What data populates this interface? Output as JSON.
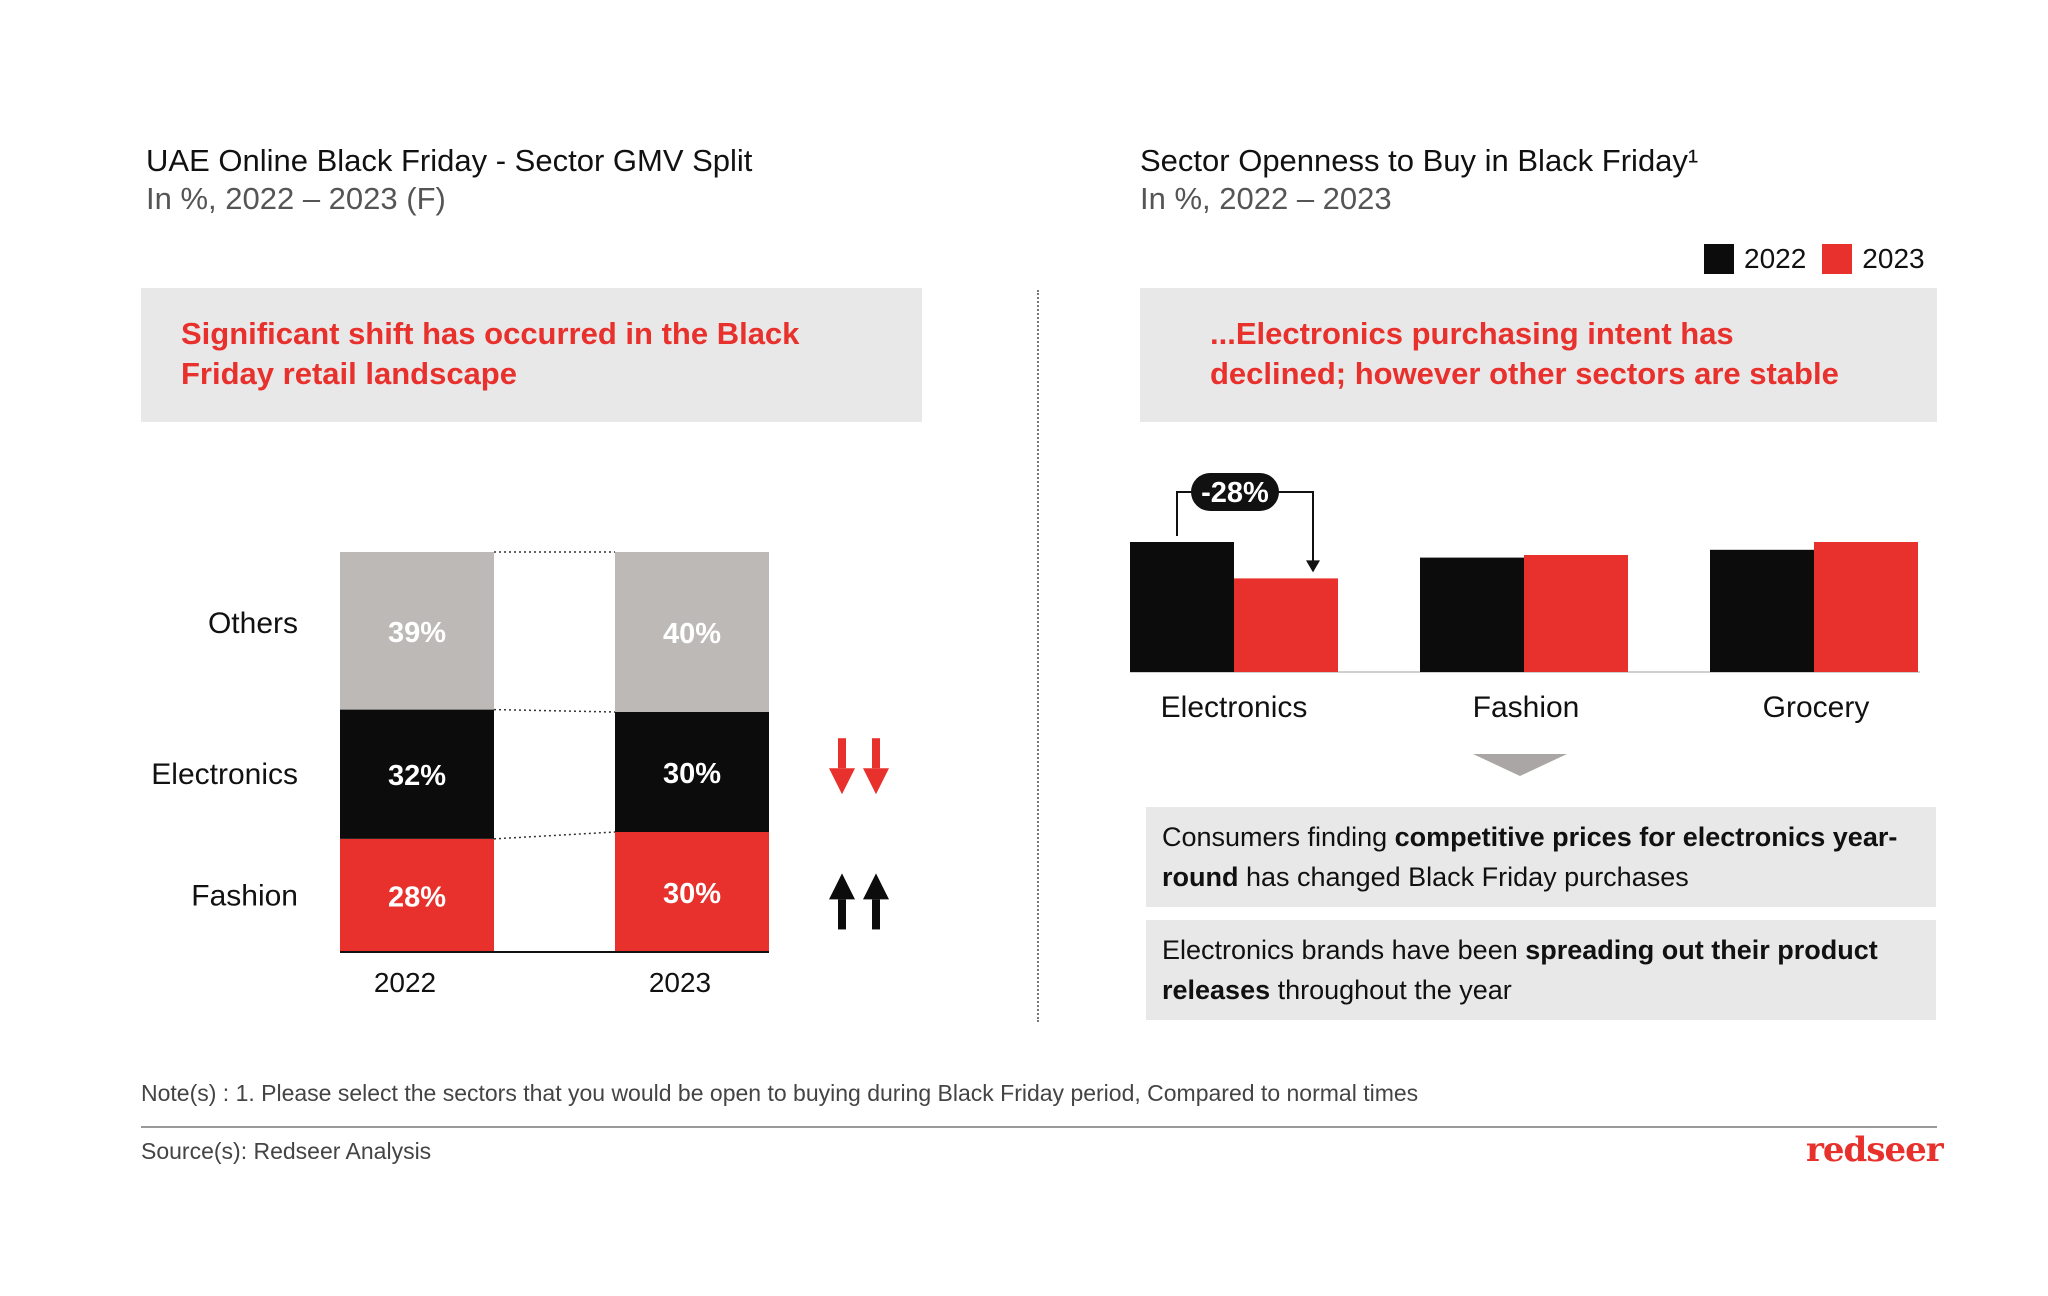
{
  "left": {
    "title": "UAE Online Black Friday - Sector GMV Split",
    "subtitle": "In %, 2022 – 2023 (F)",
    "callout": "Significant shift has occurred in the Black Friday retail landscape"
  },
  "right": {
    "title": "Sector Openness to Buy in Black Friday¹",
    "subtitle": "In %, 2022 – 2023",
    "callout": "...Electronics purchasing intent has declined; however other sectors are stable",
    "legend": [
      {
        "label": "2022",
        "color": "#0c0c0c"
      },
      {
        "label": "2023",
        "color": "#e8302c"
      }
    ],
    "insights": [
      {
        "pre": "Consumers finding ",
        "bold": "competitive prices for electronics year-round",
        "post": " has changed Black Friday purchases"
      },
      {
        "pre": "Electronics brands have been ",
        "bold": "spreading out their product releases",
        "post": " throughout the year"
      }
    ]
  },
  "note": "Note(s) : 1. Please select the sectors that you would be open to buying during Black Friday period, Compared to normal times",
  "source": "Source(s): Redseer Analysis",
  "brand": "redseer",
  "colors": {
    "accent": "#e8302c",
    "black": "#0c0c0c",
    "grey": "#bdb9b7",
    "panel": "#e8e8e8"
  },
  "chart_data": [
    {
      "type": "bar",
      "stacked": true,
      "normalized_percent": true,
      "title": "UAE Online Black Friday - Sector GMV Split",
      "subtitle": "In %, 2022 – 2023 (F)",
      "categories": [
        "2022",
        "2023"
      ],
      "series": [
        {
          "name": "Fashion",
          "values": [
            28,
            30
          ],
          "labels": [
            "28%",
            "30%"
          ],
          "color": "#e8302c"
        },
        {
          "name": "Electronics",
          "values": [
            32,
            30
          ],
          "labels": [
            "32%",
            "30%"
          ],
          "color": "#0c0c0c"
        },
        {
          "name": "Others",
          "values": [
            39,
            40
          ],
          "labels": [
            "39%",
            "40%"
          ],
          "color": "#bdb9b7"
        }
      ],
      "trend_markers": [
        {
          "series": "Electronics",
          "direction": "down",
          "color": "#e8302c"
        },
        {
          "series": "Fashion",
          "direction": "up",
          "color": "#0c0c0c"
        }
      ]
    },
    {
      "type": "bar",
      "title": "Sector Openness to Buy in Black Friday¹",
      "subtitle": "In %, 2022 – 2023",
      "categories": [
        "Electronics",
        "Fashion",
        "Grocery"
      ],
      "series": [
        {
          "name": "2022",
          "values": [
            100,
            88,
            94
          ],
          "color": "#0c0c0c"
        },
        {
          "name": "2023",
          "values": [
            72,
            90,
            100
          ],
          "color": "#e8302c"
        }
      ],
      "ylim": [
        0,
        100
      ],
      "value_axis_note": "relative index, no axis shown",
      "annotations": [
        {
          "category": "Electronics",
          "text": "-28%"
        }
      ]
    }
  ]
}
